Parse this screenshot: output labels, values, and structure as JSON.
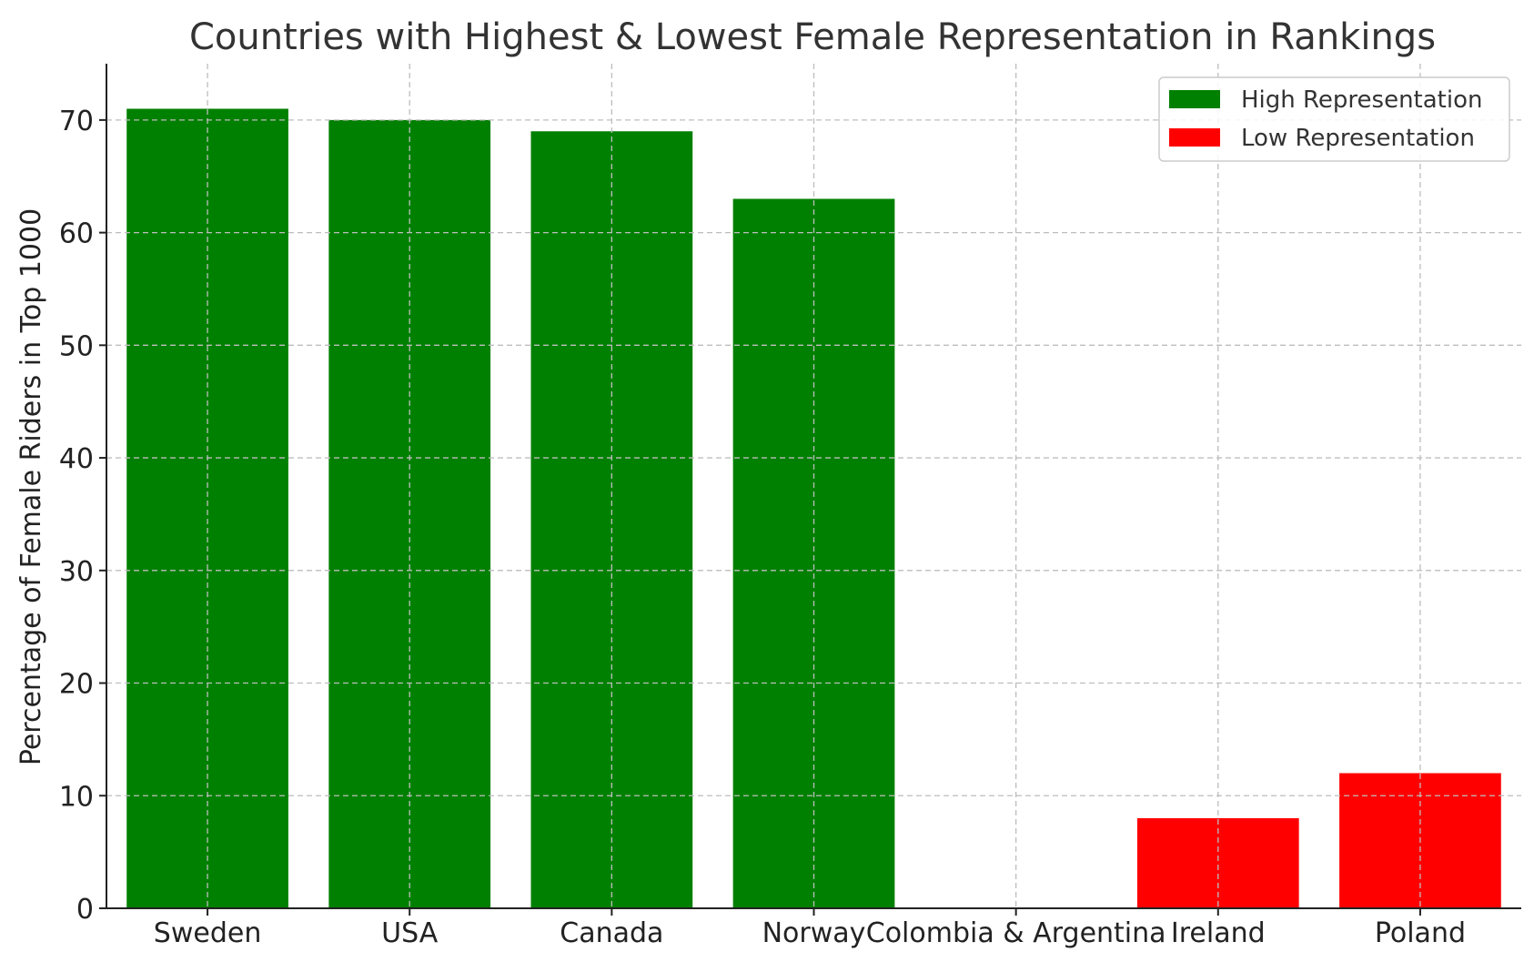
{
  "chart_data": {
    "type": "bar",
    "title": "Countries with Highest & Lowest Female Representation in Rankings",
    "xlabel": "",
    "ylabel": "Percentage of Female Riders in Top 1000",
    "categories": [
      "Sweden",
      "USA",
      "Canada",
      "Norway",
      "Colombia & Argentina",
      "Ireland",
      "Poland"
    ],
    "series": [
      {
        "name": "High Representation",
        "color": "#008000",
        "values": [
          71,
          70,
          69,
          63,
          null,
          null,
          null
        ]
      },
      {
        "name": "Low Representation",
        "color": "#ff0000",
        "values": [
          null,
          null,
          null,
          null,
          0,
          8,
          12
        ]
      }
    ],
    "ylim": [
      0,
      75
    ],
    "yticks": [
      0,
      10,
      20,
      30,
      40,
      50,
      60,
      70
    ],
    "grid": true,
    "legend_position": "top-right"
  }
}
